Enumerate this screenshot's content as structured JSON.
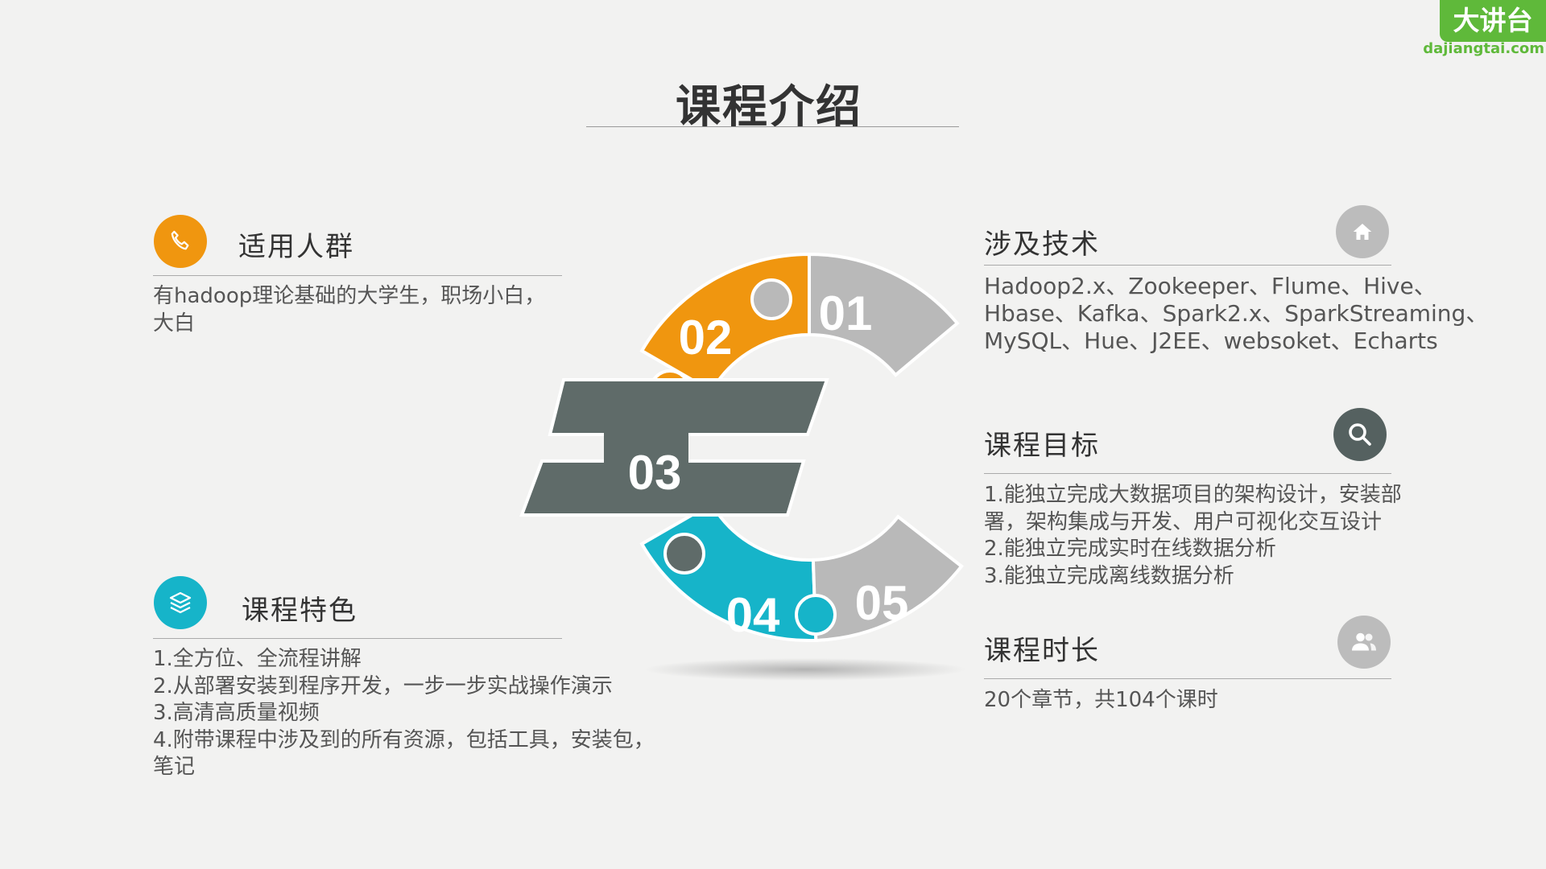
{
  "title": "课程介绍",
  "logo": {
    "text": "大讲台",
    "url": "dajiangtai.com",
    "color": "#5fb93a"
  },
  "colors": {
    "orange": "#f0960f",
    "teal": "#16b4c9",
    "dark": "#5f6b69",
    "gray": "#b9b9b9"
  },
  "sections": {
    "audience": {
      "heading": "适用人群",
      "icon": "phone-icon",
      "lines": [
        "有hadoop理论基础的大学生，职场小白，",
        "大白"
      ]
    },
    "features": {
      "heading": "课程特色",
      "icon": "layers-icon",
      "lines": [
        "1.全方位、全流程讲解",
        "2.从部署安装到程序开发，一步一步实战操作演示",
        "3.高清高质量视频",
        "4.附带课程中涉及到的所有资源，包括工具，安装包，",
        "笔记"
      ]
    },
    "tech": {
      "heading": "涉及技术",
      "icon": "home-icon",
      "lines": [
        "Hadoop2.x、Zookeeper、Flume、Hive、",
        "Hbase、Kafka、Spark2.x、SparkStreaming、",
        "MySQL、Hue、J2EE、websoket、Echarts"
      ]
    },
    "goals": {
      "heading": "课程目标",
      "icon": "search-icon",
      "lines": [
        "1.能独立完成大数据项目的架构设计，安装部",
        "署，架构集成与开发、用户可视化交互设计",
        "2.能独立完成实时在线数据分析",
        "3.能独立完成离线数据分析"
      ]
    },
    "duration": {
      "heading": "课程时长",
      "icon": "users-icon",
      "lines": [
        "20个章节，共104个课时"
      ]
    }
  },
  "puzzle": {
    "labels": [
      "01",
      "02",
      "03",
      "04",
      "05"
    ]
  }
}
